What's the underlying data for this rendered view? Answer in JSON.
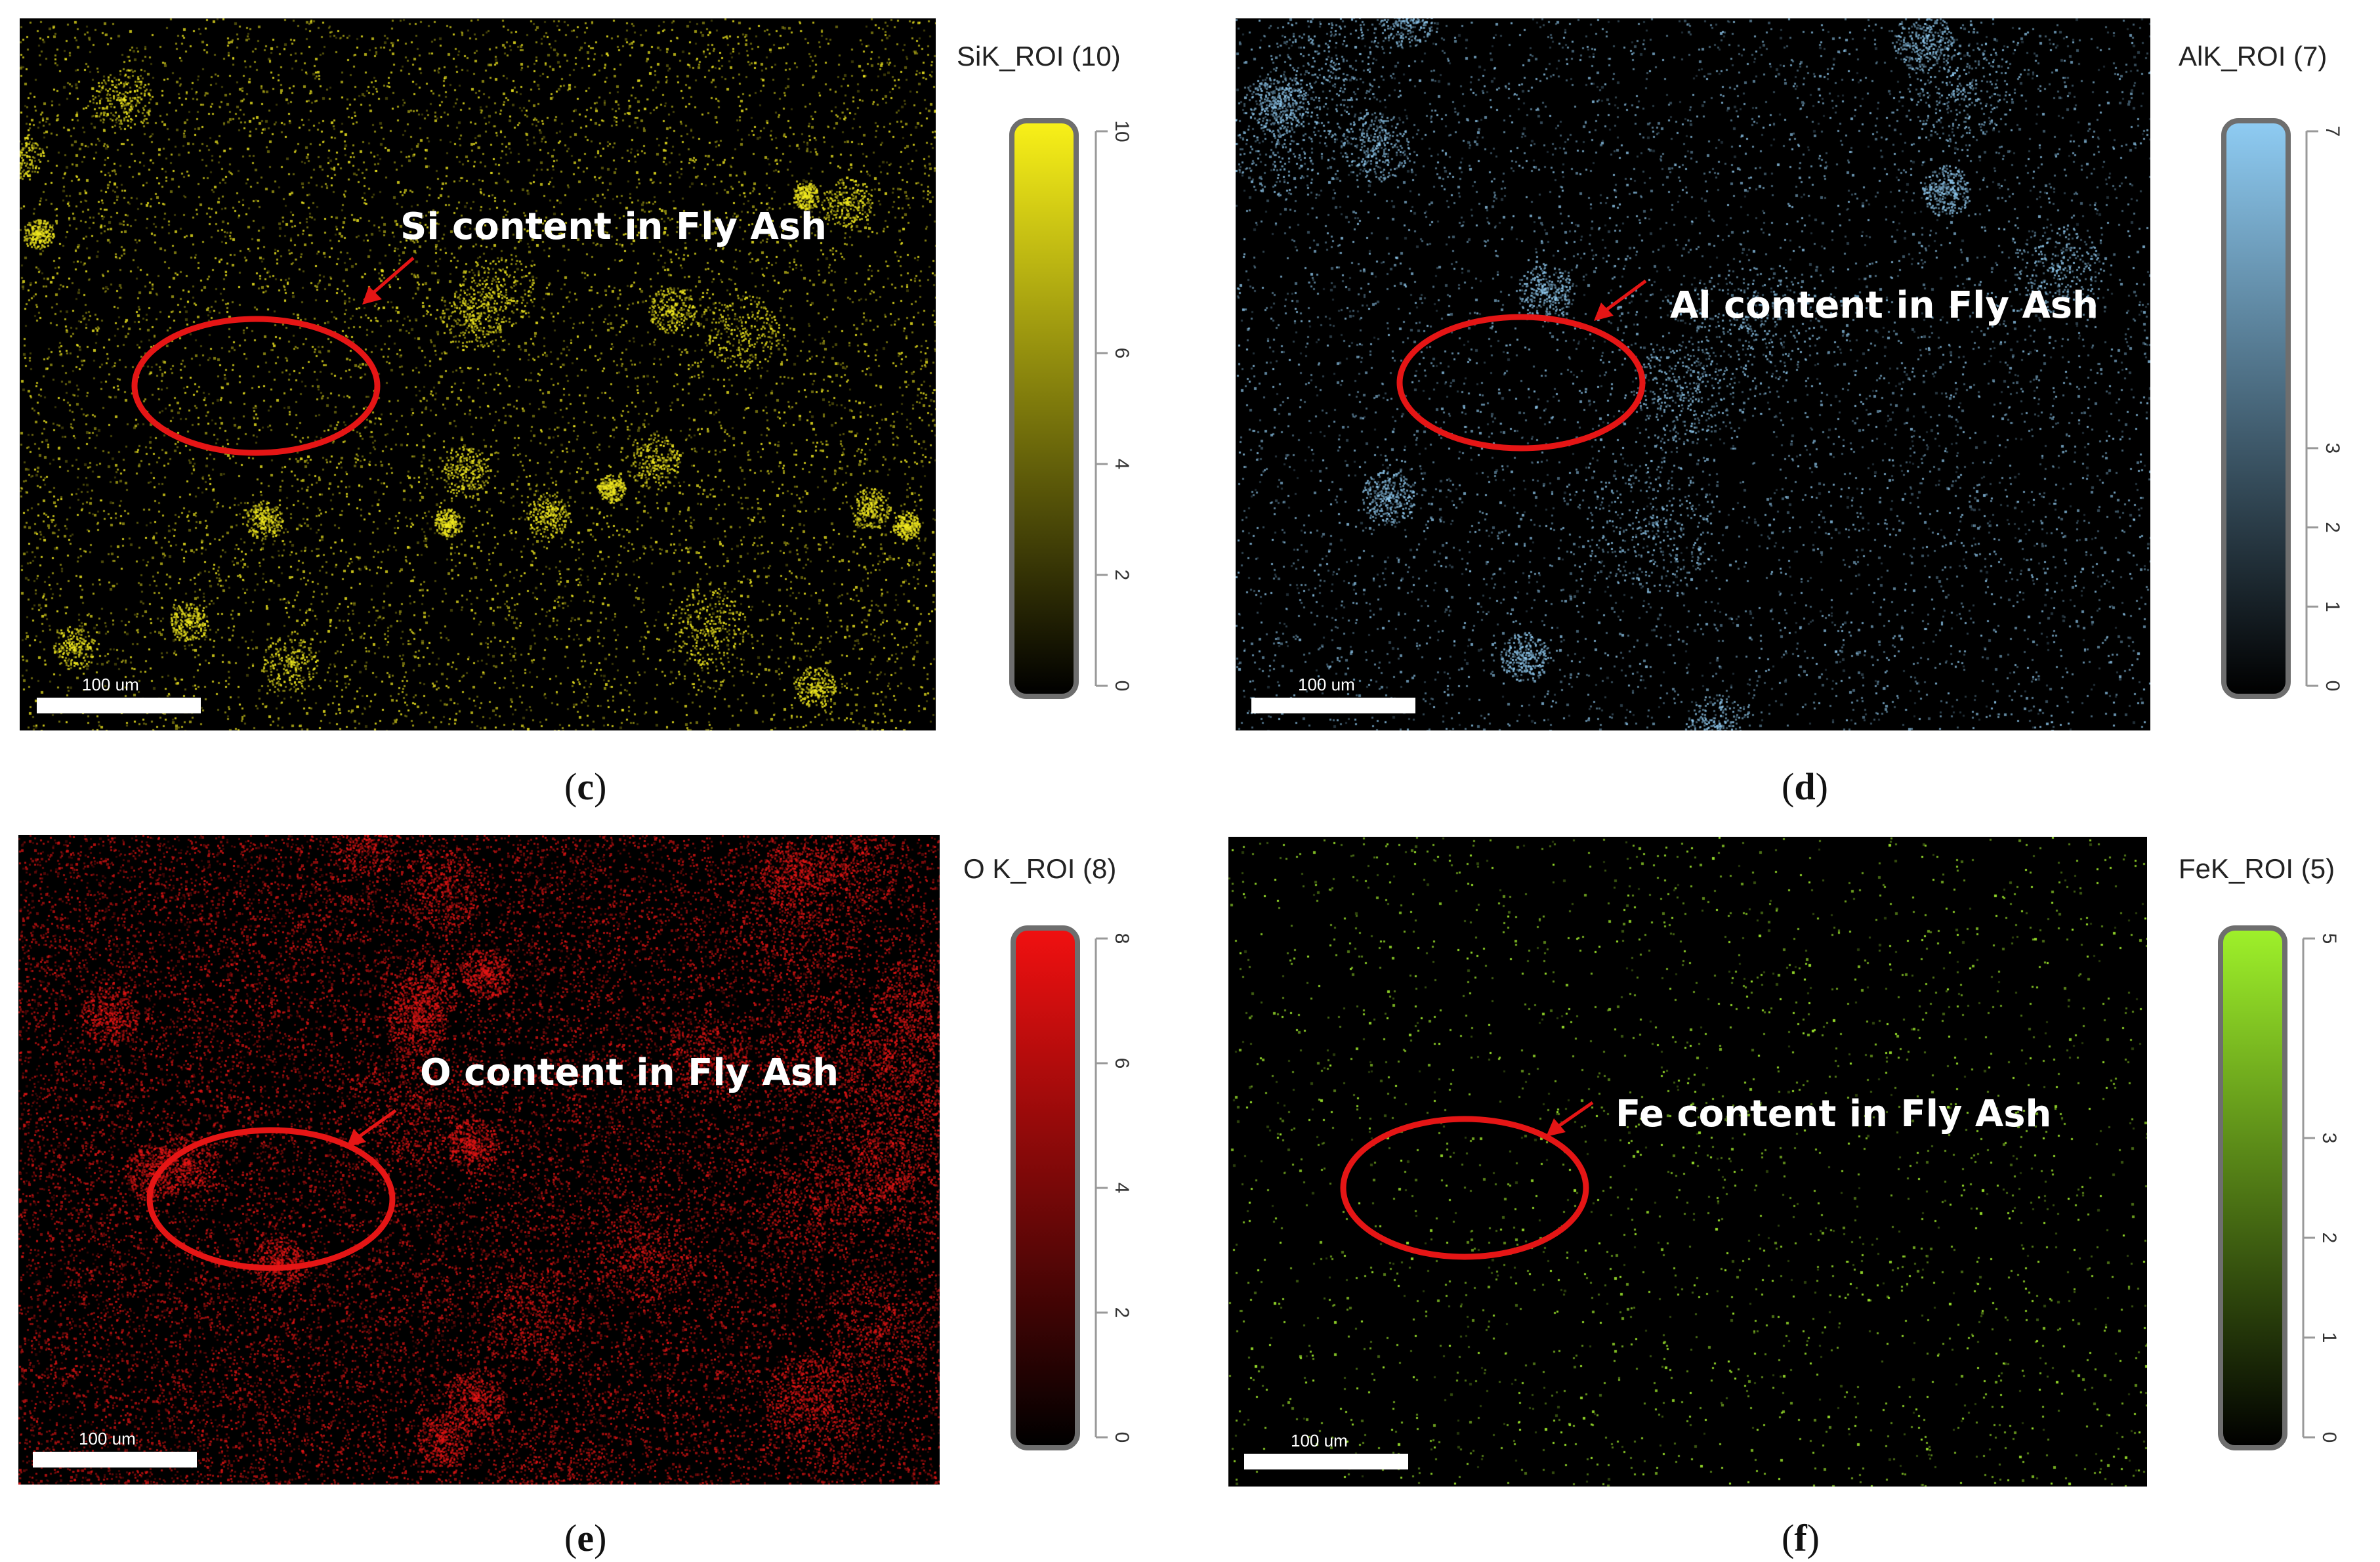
{
  "panels": [
    {
      "id": "c",
      "caption_letter": "c",
      "annotation": "Si content in Fly Ash",
      "colorbar_title": "SiK_ROI (10)",
      "ticks": [
        "10",
        "6",
        "4",
        "2",
        "0"
      ],
      "tick_values": [
        10,
        6,
        4,
        2,
        0
      ],
      "color": "#f0e81e",
      "scale_label": "100 um"
    },
    {
      "id": "d",
      "caption_letter": "d",
      "annotation": "Al content in Fly Ash",
      "colorbar_title": "AlK_ROI (7)",
      "ticks": [
        "7",
        "3",
        "2",
        "1",
        "0"
      ],
      "tick_values": [
        7,
        3,
        2,
        1,
        0
      ],
      "color": "#8ec8ee",
      "scale_label": "100 um"
    },
    {
      "id": "e",
      "caption_letter": "e",
      "annotation": "O content in Fly Ash",
      "colorbar_title": "O K_ROI (8)",
      "ticks": [
        "8",
        "6",
        "4",
        "2",
        "0"
      ],
      "tick_values": [
        8,
        6,
        4,
        2,
        0
      ],
      "color": "#e81414",
      "scale_label": "100 um"
    },
    {
      "id": "f",
      "caption_letter": "f",
      "annotation": "Fe content in Fly Ash",
      "colorbar_title": "FeK_ROI (5)",
      "ticks": [
        "5",
        "3",
        "2",
        "1",
        "0"
      ],
      "tick_values": [
        5,
        3,
        2,
        1,
        0
      ],
      "color": "#9ee82c",
      "scale_label": "100 um"
    }
  ],
  "highlight_color": "#e51515"
}
